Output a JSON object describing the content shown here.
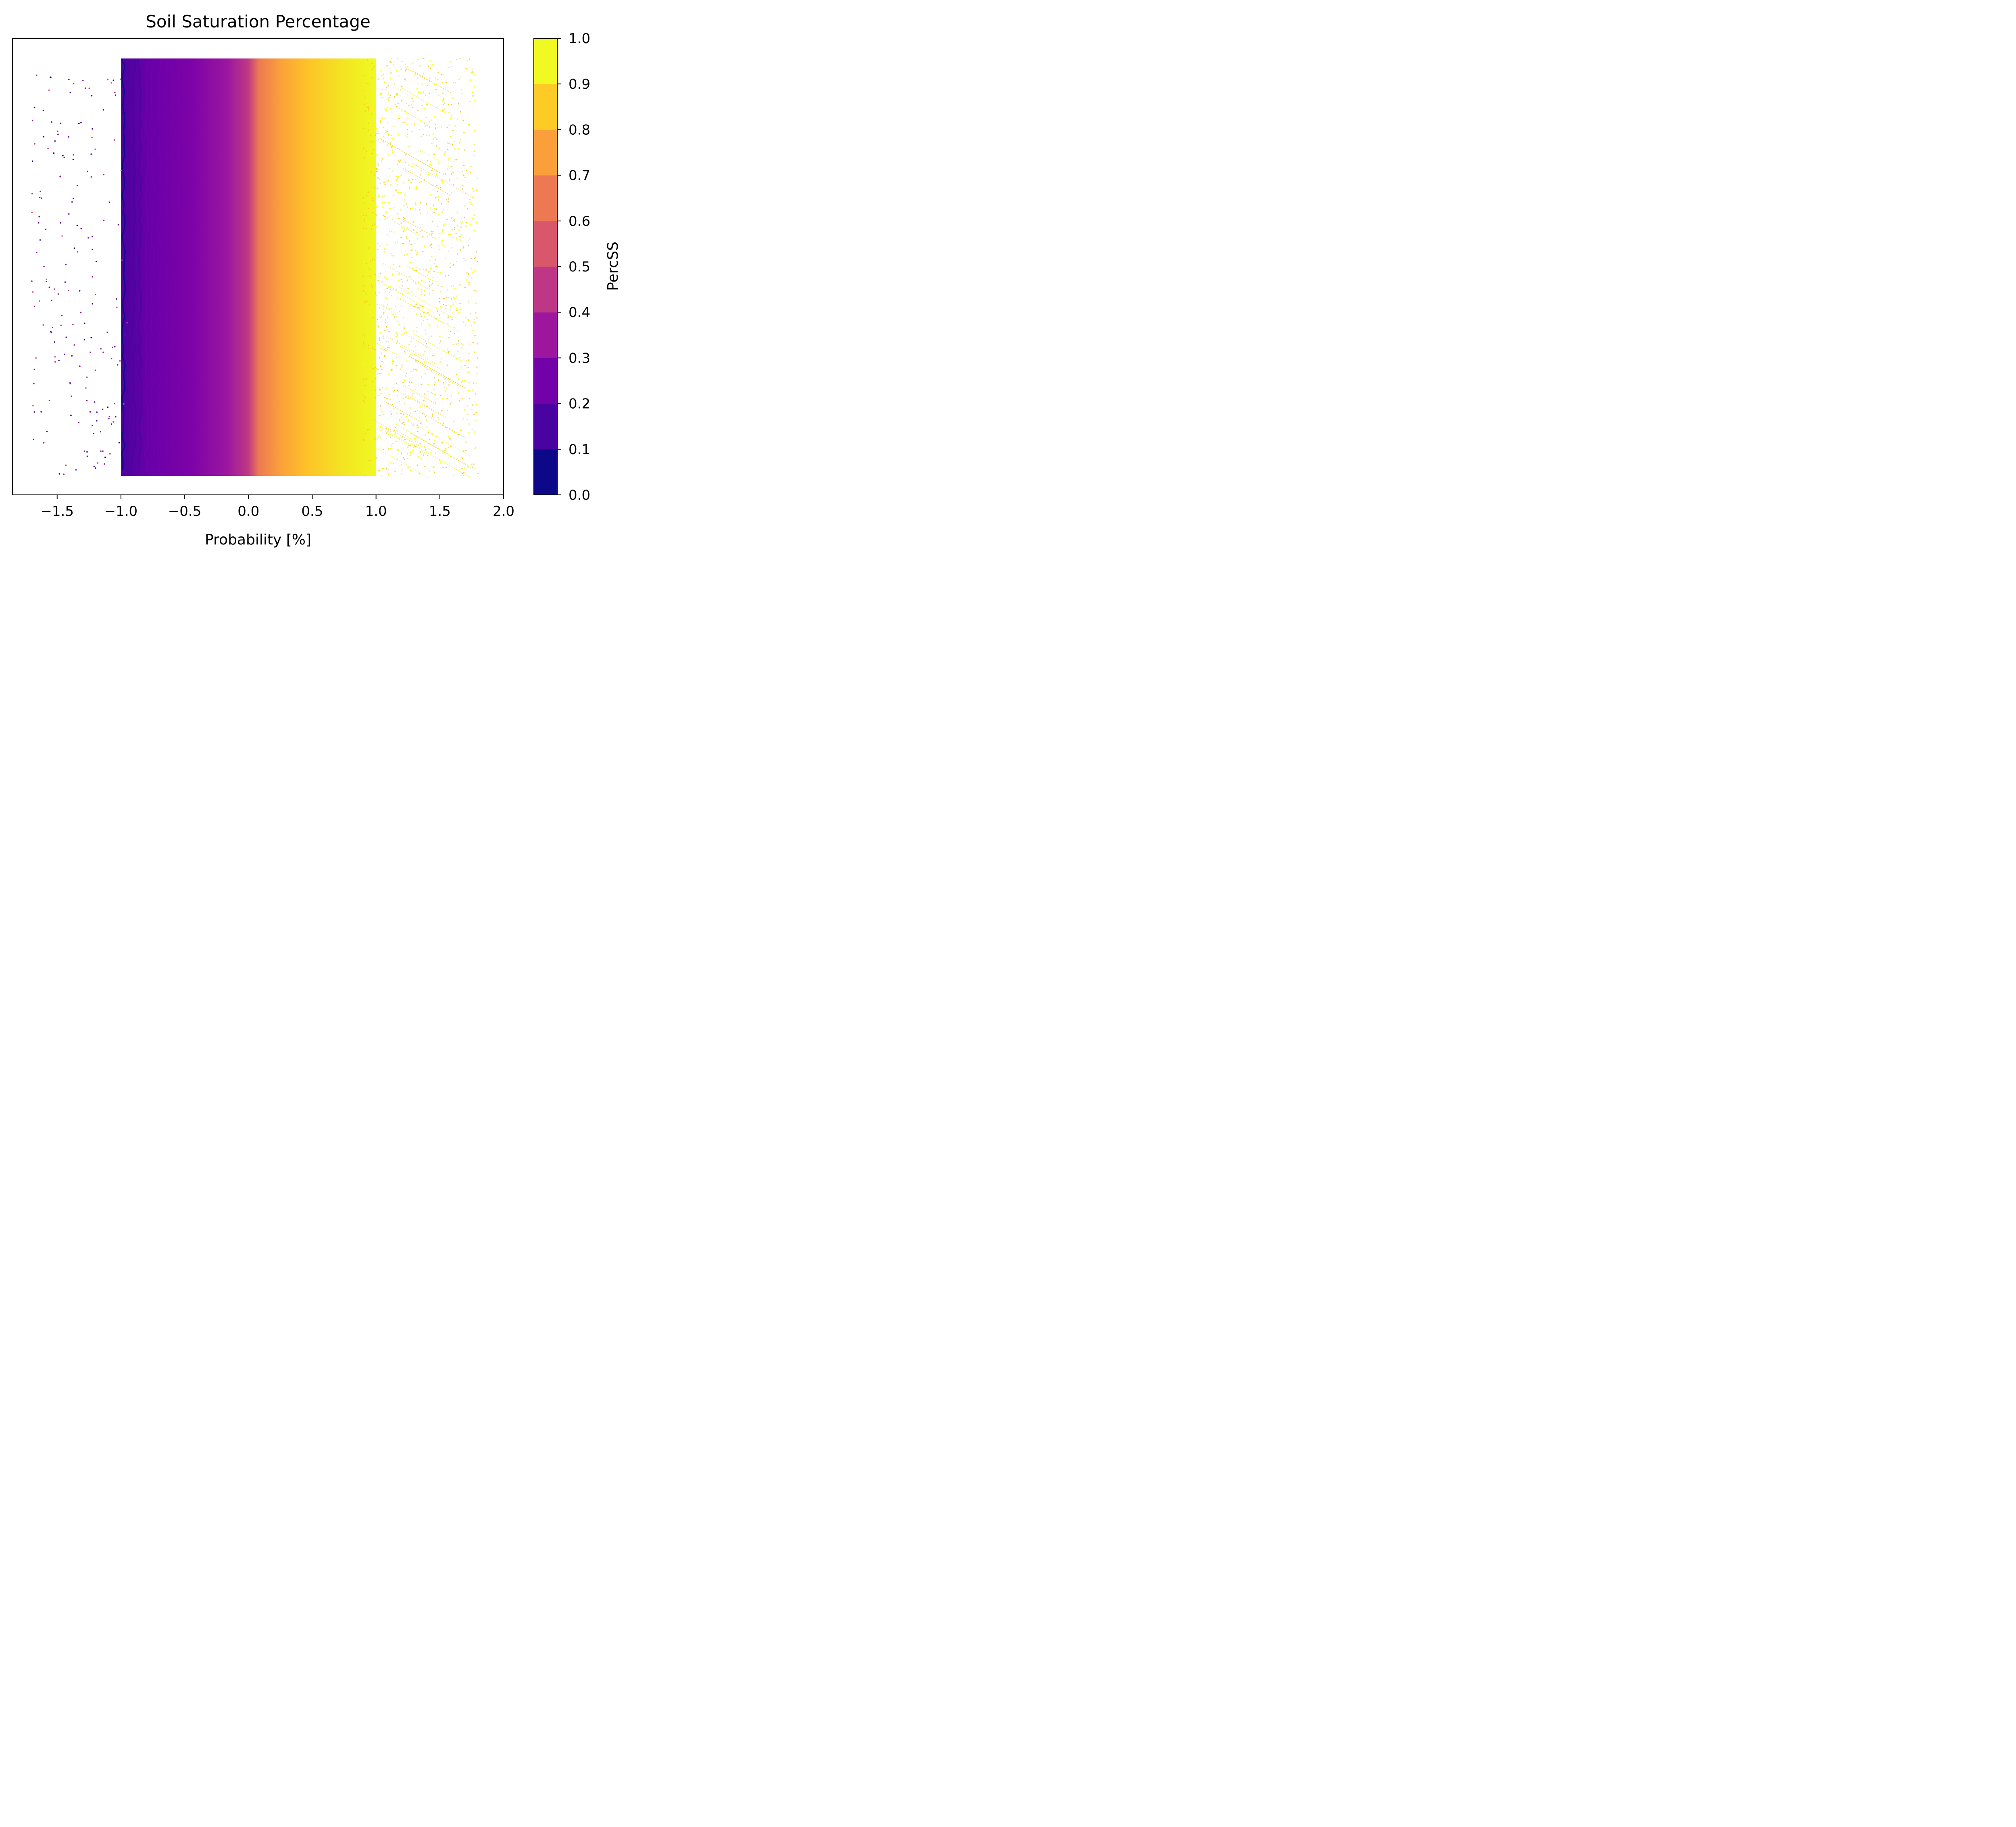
{
  "chart_data": {
    "type": "scatter",
    "title": "Soil Saturation Percentage",
    "xlabel": "Probability [%]",
    "ylabel": "",
    "xlim": [
      -1.85,
      2.0
    ],
    "ylim": [
      0,
      1
    ],
    "x_ticks": [
      -1.5,
      -1.0,
      -0.5,
      0.0,
      0.5,
      1.0,
      1.5,
      2.0
    ],
    "x_tick_labels": [
      "−1.5",
      "−1.0",
      "−0.5",
      "0.0",
      "0.5",
      "1.0",
      "1.5",
      "2.0"
    ],
    "y_ticks_visible": false,
    "grid": false,
    "colormap": "plasma",
    "colorbar": {
      "label": "PercSS",
      "range": [
        0.0,
        1.0
      ],
      "ticks": [
        0.0,
        0.1,
        0.2,
        0.3,
        0.4,
        0.5,
        0.6,
        0.7,
        0.8,
        0.9,
        1.0
      ],
      "tick_labels": [
        "0.0",
        "0.1",
        "0.2",
        "0.3",
        "0.4",
        "0.5",
        "0.6",
        "0.7",
        "0.8",
        "0.9",
        "1.0"
      ],
      "levels": 10,
      "colors": [
        "#0d0887",
        "#4903a0",
        "#7201a8",
        "#9c179e",
        "#bd3786",
        "#d8576b",
        "#ed7953",
        "#fb9f3a",
        "#fdca26",
        "#f0f921"
      ]
    },
    "point_bands": [
      {
        "x_min": -1.02,
        "x_max": -0.95,
        "percss": 0.05
      },
      {
        "x_min": -0.95,
        "x_max": -0.65,
        "percss": 0.3
      },
      {
        "x_min": -0.65,
        "x_max": -0.3,
        "percss": 0.3
      },
      {
        "x_min": -0.3,
        "x_max": -0.02,
        "percss": 0.45
      },
      {
        "x_min": -0.02,
        "x_max": 0.35,
        "percss": 0.72
      },
      {
        "x_min": 0.35,
        "x_max": 0.95,
        "percss": 0.88
      },
      {
        "x_min": 0.95,
        "x_max": 1.8,
        "percss": 0.92
      }
    ]
  }
}
